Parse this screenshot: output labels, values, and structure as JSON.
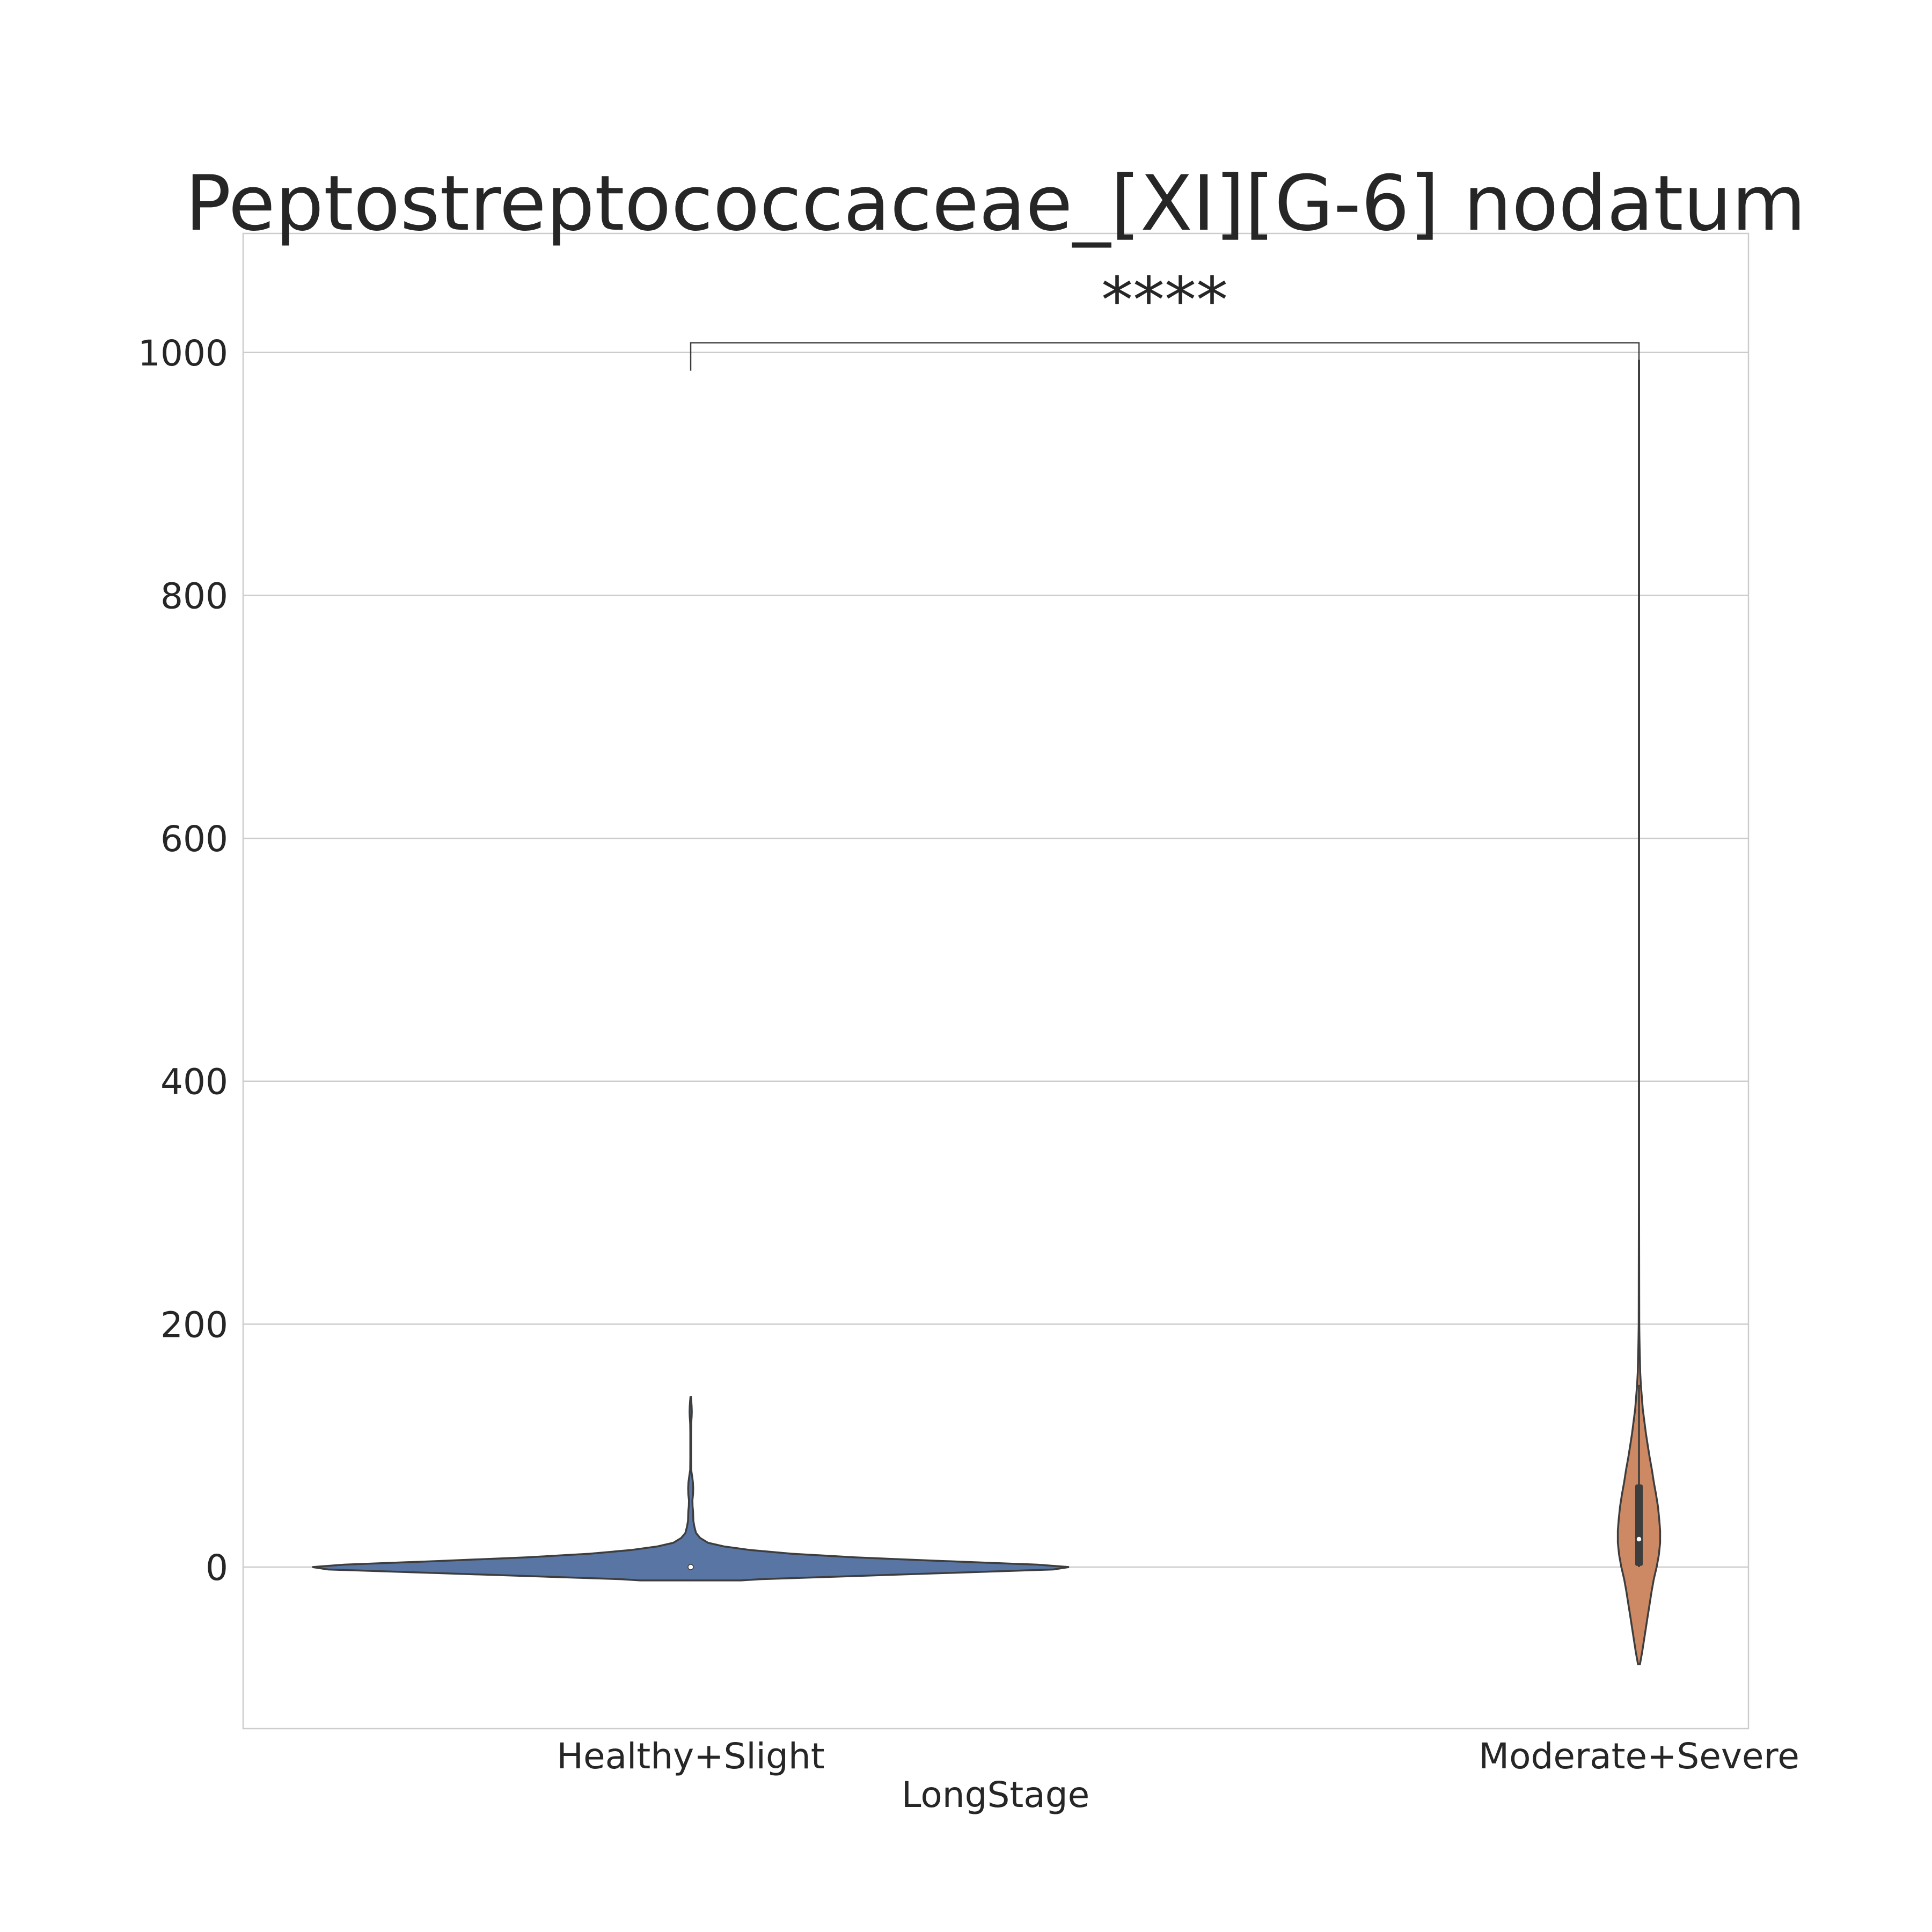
{
  "chart_data": {
    "type": "violin",
    "title": "Peptostreptococcaceae_[XI][G-6] nodatum",
    "xlabel": "LongStage",
    "ylabel": "",
    "ylim": [
      -133,
      1098
    ],
    "yticks": [
      0,
      200,
      400,
      600,
      800,
      1000
    ],
    "grid": true,
    "categories": [
      "Healthy+Slight",
      "Moderate+Severe"
    ],
    "series": [
      {
        "category": "Healthy+Slight",
        "color": "#5875a4",
        "kde_max": 12,
        "profile": [
          [
            -11,
            1.6
          ],
          [
            -10,
            2.2
          ],
          [
            -8,
            4.5
          ],
          [
            -5,
            8.0
          ],
          [
            -2,
            11.5
          ],
          [
            0,
            12.0
          ],
          [
            2,
            11.0
          ],
          [
            5,
            8.0
          ],
          [
            8,
            5.2
          ],
          [
            11,
            3.2
          ],
          [
            14,
            1.9
          ],
          [
            17,
            1.05
          ],
          [
            20,
            0.55
          ],
          [
            24,
            0.3
          ],
          [
            28,
            0.17
          ],
          [
            33,
            0.12
          ],
          [
            38,
            0.085
          ],
          [
            42,
            0.08
          ],
          [
            46,
            0.075
          ],
          [
            50,
            0.06
          ],
          [
            55,
            0.055
          ],
          [
            60,
            0.075
          ],
          [
            65,
            0.08
          ],
          [
            70,
            0.07
          ],
          [
            75,
            0.045
          ],
          [
            80,
            0.015
          ],
          [
            90,
            0.012
          ],
          [
            100,
            0.012
          ],
          [
            110,
            0.012
          ],
          [
            118,
            0.015
          ],
          [
            124,
            0.03
          ],
          [
            128,
            0.035
          ],
          [
            132,
            0.03
          ],
          [
            136,
            0.02
          ],
          [
            140,
            0.006
          ]
        ],
        "min": 0,
        "q1": 0,
        "median": 0,
        "q3": 0,
        "max": 0
      },
      {
        "category": "Moderate+Severe",
        "color": "#cc8963",
        "kde_max": 12,
        "profile": [
          [
            -80,
            0.03
          ],
          [
            -70,
            0.1
          ],
          [
            -60,
            0.16
          ],
          [
            -50,
            0.22
          ],
          [
            -40,
            0.28
          ],
          [
            -30,
            0.34
          ],
          [
            -20,
            0.4
          ],
          [
            -10,
            0.47
          ],
          [
            0,
            0.56
          ],
          [
            10,
            0.63
          ],
          [
            20,
            0.67
          ],
          [
            30,
            0.67
          ],
          [
            40,
            0.64
          ],
          [
            50,
            0.6
          ],
          [
            60,
            0.54
          ],
          [
            70,
            0.47
          ],
          [
            80,
            0.41
          ],
          [
            90,
            0.34
          ],
          [
            100,
            0.28
          ],
          [
            110,
            0.22
          ],
          [
            120,
            0.17
          ],
          [
            130,
            0.12
          ],
          [
            140,
            0.09
          ],
          [
            150,
            0.06
          ],
          [
            160,
            0.04
          ],
          [
            170,
            0.03
          ],
          [
            180,
            0.02
          ],
          [
            190,
            0.013
          ],
          [
            200,
            0.009
          ],
          [
            230,
            0.006
          ],
          [
            300,
            0.004
          ],
          [
            500,
            0.003
          ],
          [
            800,
            0.003
          ],
          [
            993,
            0.003
          ]
        ],
        "min": 0,
        "q1": 1,
        "median": 23,
        "q3": 68,
        "max": 150
      }
    ],
    "annotation": {
      "text": "****",
      "from": "Healthy+Slight",
      "to": "Moderate+Severe",
      "y": 1008,
      "left_end": 985,
      "right_end": 993
    }
  }
}
